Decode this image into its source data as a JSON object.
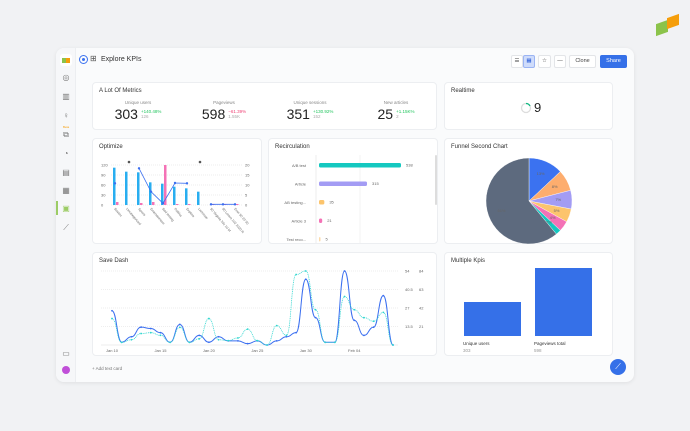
{
  "header": {
    "title": "Explore KPIs",
    "clone_label": "Clone",
    "share_label": "Share"
  },
  "sidebar": {
    "badge": "Beta",
    "icons": [
      "logo",
      "dashboard-icon",
      "chart-icon",
      "lightbulb-icon",
      "layers-icon",
      "timer-icon",
      "grid-icon",
      "table-icon",
      "dashboard-active-icon",
      "wand-icon",
      "device-icon",
      "avatar"
    ]
  },
  "metrics": {
    "title": "A Lot Of Metrics",
    "items": [
      {
        "label": "Unique users",
        "value": "303",
        "change": "+140.48%",
        "prev": "126",
        "up": true
      },
      {
        "label": "Pageviews",
        "value": "598",
        "change": "−61.39%",
        "prev": "1.55K",
        "up": false
      },
      {
        "label": "Unique sessions",
        "value": "351",
        "change": "+130.92%",
        "prev": "152",
        "up": true
      },
      {
        "label": "New articles",
        "value": "25",
        "change": "+1.15K%",
        "prev": "2",
        "up": true
      }
    ]
  },
  "realtime": {
    "title": "Realtime",
    "value": "9"
  },
  "optimize": {
    "title": "Optimize",
    "chart_data": {
      "type": "bar",
      "categories": [
        "Boston",
        "Uncategorized",
        "Sports",
        "Entertainment",
        "Bad testing",
        "Politics",
        "Explore",
        "Lacrosse",
        "50 Virginia 20x 10 M",
        "80 Lorem 102 2020 R",
        "Ever 50 20 30"
      ],
      "yticks_left": [
        "0",
        "30",
        "60",
        "90",
        "120"
      ],
      "yticks_right": [
        "0",
        "5",
        "10",
        "15",
        "20"
      ],
      "series": [
        {
          "color": "#28aef0",
          "axis": "left",
          "values": [
            112,
            100,
            98,
            68,
            64,
            55,
            50,
            40,
            0,
            0,
            0
          ]
        },
        {
          "color": "#f472b6",
          "axis": "right",
          "values": [
            1.5,
            0,
            1,
            1.5,
            20,
            0.5,
            0.5,
            0,
            0.5,
            0.5,
            0.5
          ]
        },
        {
          "color": "#3b6ff0",
          "type": "line",
          "axis": "left",
          "values": [
            65,
            null,
            110,
            40,
            5,
            66,
            65,
            null,
            2,
            2,
            2
          ]
        }
      ]
    }
  },
  "recirculation": {
    "title": "Recirculation",
    "chart_data": {
      "type": "bar",
      "orientation": "horizontal",
      "categories": [
        "A/B test",
        "Article",
        "AB testing...",
        "Article 3",
        "Test reco..."
      ],
      "values": [
        538,
        315,
        35,
        21,
        5
      ],
      "colors": [
        "#14c8c0",
        "#a39cf4",
        "#fcc46c",
        "#f472b6",
        "#fcd9a8"
      ]
    }
  },
  "funnel": {
    "title": "Funnel Second Chart",
    "chart_data": {
      "type": "pie",
      "slices": [
        {
          "label": "13%",
          "value": 13,
          "color": "#3b72f0"
        },
        {
          "label": "8%",
          "value": 8,
          "color": "#fdad6e"
        },
        {
          "label": "7%",
          "value": 7,
          "color": "#a39cf4"
        },
        {
          "label": "5%",
          "value": 5,
          "color": "#fcc46c"
        },
        {
          "label": "4%",
          "value": 4,
          "color": "#f472b6"
        },
        {
          "label": "2%",
          "value": 2,
          "color": "#14c8c0"
        },
        {
          "label": "61%",
          "value": 61,
          "color": "#5d6a7e"
        }
      ]
    }
  },
  "savedash": {
    "title": "Save Dash",
    "chart_data": {
      "type": "line",
      "xticks": [
        "Jan 10",
        "Jan 15",
        "Jan 20",
        "Jan 25",
        "Jan 30",
        "Feb 04"
      ],
      "yticks_left": [
        "13.5",
        "27",
        "40.5",
        "54"
      ],
      "yticks_right": [
        "21",
        "42",
        "63",
        "84"
      ],
      "series": [
        {
          "color": "#3b6ff0",
          "axis": "left",
          "values": [
            25,
            2,
            6,
            13,
            12,
            9,
            2,
            15,
            2,
            7,
            2,
            6,
            3,
            3,
            1,
            3,
            0,
            3,
            6,
            9,
            48,
            20,
            2,
            2,
            54,
            18,
            7,
            13,
            36,
            0
          ]
        },
        {
          "color": "#2fd6cf",
          "axis": "right",
          "dashed": true,
          "values": [
            30,
            3,
            6,
            13,
            14,
            11,
            3,
            20,
            3,
            7,
            30,
            6,
            5,
            8,
            18,
            5,
            0,
            22,
            11,
            80,
            84,
            40,
            3,
            3,
            55,
            40,
            31,
            27,
            37,
            0
          ]
        }
      ]
    }
  },
  "multikpis": {
    "title": "Multiple Kpis",
    "chart_data": {
      "type": "bar",
      "categories": [
        "Unique users",
        "Pageviews total"
      ],
      "values": [
        303,
        598
      ],
      "labels": [
        "303",
        "598"
      ],
      "color": "#3570e8"
    }
  },
  "footer": {
    "add_text_card": "+ Add text card"
  }
}
